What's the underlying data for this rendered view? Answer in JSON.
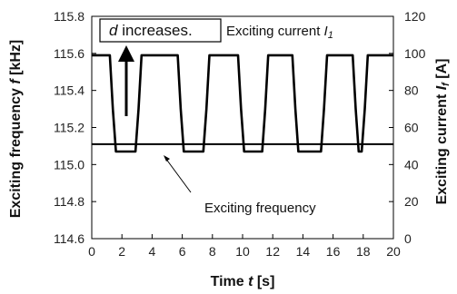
{
  "chart_data": {
    "type": "line",
    "x_axis": {
      "label_prefix": "Time ",
      "symbol": "t",
      "unit": " [s]",
      "range": [
        0,
        20
      ],
      "ticks": [
        "0",
        "2",
        "4",
        "6",
        "8",
        "10",
        "12",
        "14",
        "16",
        "18",
        "20"
      ]
    },
    "y_left": {
      "label_prefix": "Exciting frequency ",
      "symbol": "f",
      "unit": " [kHz]",
      "range": [
        114.6,
        115.8
      ],
      "ticks": [
        "114.6",
        "114.8",
        "115.0",
        "115.2",
        "115.4",
        "115.6",
        "115.8"
      ]
    },
    "y_right": {
      "label_prefix": "Exciting current ",
      "symbol": "I",
      "subscript": "f",
      "unit": " [A]",
      "range": [
        0,
        120
      ],
      "ticks": [
        "0",
        "20",
        "40",
        "60",
        "80",
        "100",
        "120"
      ]
    },
    "series": [
      {
        "axis": "left",
        "color": "#000000",
        "points": [
          [
            0,
            115.59
          ],
          [
            1.2,
            115.59
          ],
          [
            1.4,
            115.3
          ],
          [
            1.6,
            115.07
          ],
          [
            2.9,
            115.07
          ],
          [
            3.1,
            115.3
          ],
          [
            3.3,
            115.59
          ],
          [
            5.7,
            115.59
          ],
          [
            5.9,
            115.3
          ],
          [
            6.1,
            115.07
          ],
          [
            7.4,
            115.07
          ],
          [
            7.6,
            115.3
          ],
          [
            7.8,
            115.59
          ],
          [
            9.7,
            115.59
          ],
          [
            9.9,
            115.3
          ],
          [
            10.1,
            115.07
          ],
          [
            11.3,
            115.07
          ],
          [
            11.5,
            115.3
          ],
          [
            11.7,
            115.59
          ],
          [
            13.3,
            115.59
          ],
          [
            13.5,
            115.3
          ],
          [
            13.7,
            115.07
          ],
          [
            15.2,
            115.07
          ],
          [
            15.4,
            115.3
          ],
          [
            15.6,
            115.59
          ],
          [
            17.3,
            115.59
          ],
          [
            17.5,
            115.3
          ],
          [
            17.7,
            115.07
          ],
          [
            17.9,
            115.07
          ],
          [
            18.1,
            115.3
          ],
          [
            18.3,
            115.59
          ],
          [
            20,
            115.59
          ]
        ]
      },
      {
        "axis": "right",
        "color": "#000000",
        "points": [
          [
            0,
            51
          ],
          [
            20,
            51
          ]
        ]
      }
    ],
    "annotations": {
      "d_symbol": "d",
      "d_text": " increases.",
      "current_prefix": "Exciting current ",
      "current_symbol": "I",
      "current_subscript": "1",
      "frequency_label": "Exciting frequency"
    },
    "grid": false,
    "legend": "none"
  }
}
